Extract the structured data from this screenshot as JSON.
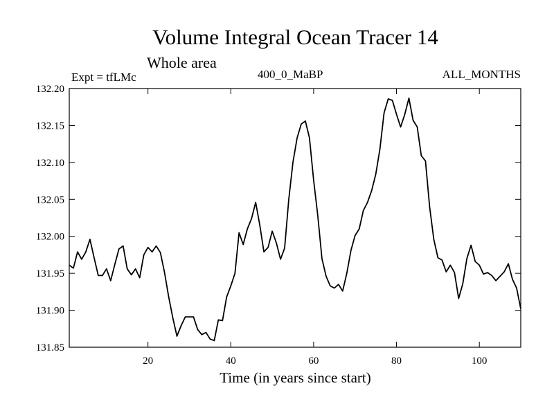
{
  "chart_data": {
    "type": "line",
    "title": "Volume Integral Ocean Tracer 14",
    "subtitle": "Whole area",
    "annotation_left": "Expt = tfLMc",
    "annotation_center": "400_0_MaBP",
    "annotation_right": "ALL_MONTHS",
    "xlabel": "Time (in years since start)",
    "ylabel": "",
    "xlim": [
      1,
      110
    ],
    "ylim": [
      131.85,
      132.2
    ],
    "xticks": [
      20,
      40,
      60,
      80,
      100
    ],
    "yticks": [
      "131.85",
      "131.90",
      "131.95",
      "132.00",
      "132.05",
      "132.10",
      "132.15",
      "132.20"
    ],
    "grid": false,
    "series": [
      {
        "x": [
          1,
          2,
          3,
          4,
          5,
          6,
          7,
          8,
          9,
          10,
          11,
          12,
          13,
          14,
          15,
          16,
          17,
          18,
          19,
          20,
          21,
          22,
          23,
          24,
          25,
          26,
          27,
          28,
          29,
          30,
          31,
          32,
          33,
          34,
          35,
          36,
          37,
          38,
          39,
          40,
          41,
          42,
          43,
          44,
          45,
          46,
          47,
          48,
          49,
          50,
          51,
          52,
          53,
          54,
          55,
          56,
          57,
          58,
          59,
          60,
          61,
          62,
          63,
          64,
          65,
          66,
          67,
          68,
          69,
          70,
          71,
          72,
          73,
          74,
          75,
          76,
          77,
          78,
          79,
          80,
          81,
          82,
          83,
          84,
          85,
          86,
          87,
          88,
          89,
          90,
          91,
          92,
          93,
          94,
          95,
          96,
          97,
          98,
          99,
          100,
          101,
          102,
          103,
          104,
          105,
          106,
          107,
          108,
          109,
          110
        ],
        "values": [
          131.961,
          131.957,
          131.979,
          131.969,
          131.979,
          131.996,
          131.971,
          131.947,
          131.947,
          131.956,
          131.94,
          131.962,
          131.983,
          131.987,
          131.956,
          131.948,
          131.956,
          131.944,
          131.975,
          131.985,
          131.979,
          131.987,
          131.978,
          131.951,
          131.918,
          131.89,
          131.865,
          131.879,
          131.891,
          131.891,
          131.891,
          131.874,
          131.867,
          131.87,
          131.861,
          131.859,
          131.887,
          131.886,
          131.918,
          131.933,
          131.95,
          132.005,
          131.989,
          132.01,
          132.024,
          132.046,
          132.015,
          131.979,
          131.985,
          132.007,
          131.991,
          131.969,
          131.984,
          132.05,
          132.1,
          132.133,
          132.152,
          132.156,
          132.133,
          132.076,
          132.028,
          131.97,
          131.946,
          131.933,
          131.93,
          131.935,
          131.926,
          131.95,
          131.981,
          132.001,
          132.01,
          132.035,
          132.046,
          132.062,
          132.084,
          132.118,
          132.167,
          132.186,
          132.184,
          132.165,
          132.148,
          132.165,
          132.187,
          132.157,
          132.148,
          132.109,
          132.102,
          132.04,
          131.996,
          131.971,
          131.968,
          131.952,
          131.961,
          131.951,
          131.916,
          131.936,
          131.97,
          131.988,
          131.966,
          131.961,
          131.949,
          131.951,
          131.947,
          131.94,
          131.946,
          131.952,
          131.963,
          131.942,
          131.93,
          131.902
        ]
      }
    ]
  }
}
